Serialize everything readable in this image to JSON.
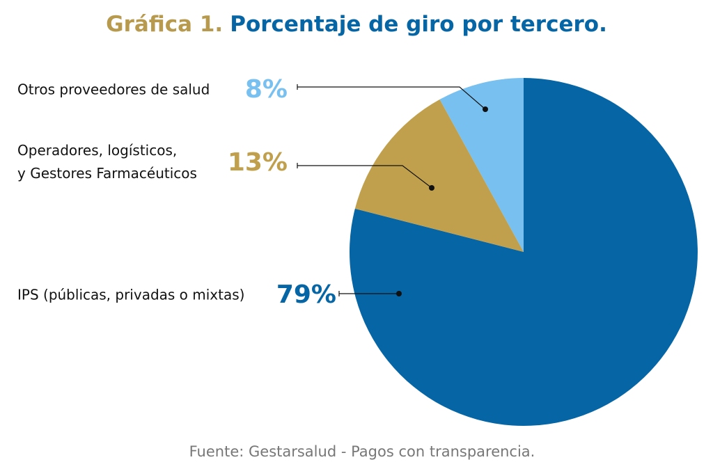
{
  "chart_data": {
    "type": "pie",
    "title_prefix": "Gráfica 1.",
    "title": "Porcentaje de giro por tercero.",
    "categories": [
      "IPS (públicas, privadas o mixtas)",
      "Operadores, logísticos,\ny Gestores Farmacéuticos",
      "Otros proveedores de salud"
    ],
    "values": [
      79,
      13,
      8
    ],
    "value_labels": [
      "79%",
      "13%",
      "8%"
    ],
    "colors": [
      "#0565a5",
      "#c0a04c",
      "#78c0f0"
    ],
    "source": "Fuente: Gestarsalud - Pagos con transparencia."
  }
}
